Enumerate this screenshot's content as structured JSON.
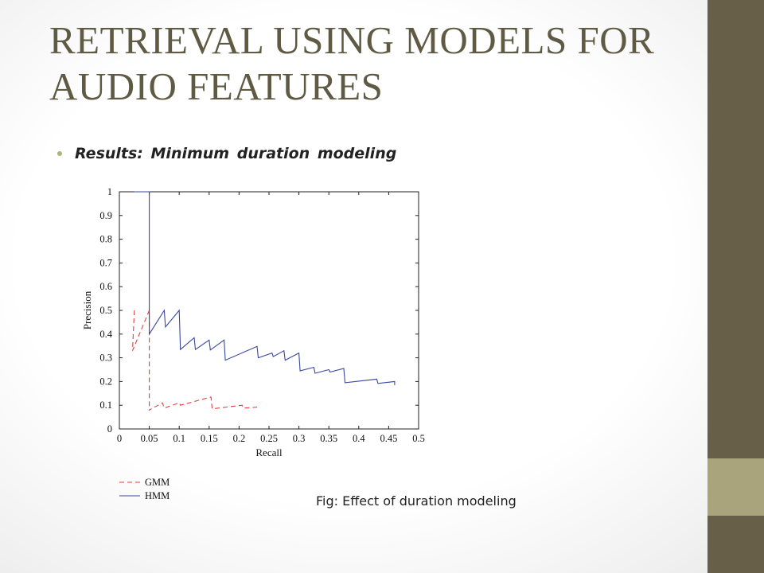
{
  "slide": {
    "title": "RETRIEVAL USING MODELS FOR AUDIO FEATURES",
    "bullet": "Results: Minimum duration modeling",
    "caption": "Fig: Effect of duration modeling"
  },
  "theme": {
    "sidebar_dark": "#675f47",
    "sidebar_light": "#aaa47c",
    "title_color": "#5f5a44",
    "bullet_color": "#b4b07c"
  },
  "chart_data": {
    "type": "line",
    "xlabel": "Recall",
    "ylabel": "Precision",
    "xlim": [
      0,
      0.5
    ],
    "ylim": [
      0,
      1
    ],
    "xticks": [
      0,
      0.05,
      0.1,
      0.15,
      0.2,
      0.25,
      0.3,
      0.35,
      0.4,
      0.45,
      0.5
    ],
    "yticks": [
      0,
      0.1,
      0.2,
      0.3,
      0.4,
      0.5,
      0.6,
      0.7,
      0.8,
      0.9,
      1
    ],
    "xtick_labels": [
      "0",
      "0.05",
      "0.1",
      "0.15",
      "0.2",
      "0.25",
      "0.3",
      "0.35",
      "0.4",
      "0.45",
      "0.5"
    ],
    "ytick_labels": [
      "0",
      "0.1",
      "0.2",
      "0.3",
      "0.4",
      "0.5",
      "0.6",
      "0.7",
      "0.8",
      "0.9",
      "1"
    ],
    "grid": false,
    "legend": "below-left",
    "series": [
      {
        "name": "GMM",
        "color": "#e04040",
        "dash": "dashed",
        "x": [
          0.025,
          0.022,
          0.05,
          0.05,
          0.05,
          0.072,
          0.075,
          0.1,
          0.102,
          0.153,
          0.155,
          0.205,
          0.207,
          0.23
        ],
        "y": [
          0.5,
          0.33,
          0.5,
          0.077,
          0.08,
          0.11,
          0.088,
          0.11,
          0.1,
          0.135,
          0.085,
          0.1,
          0.088,
          0.092
        ]
      },
      {
        "name": "HMM",
        "color": "#3a47a0",
        "dash": "solid",
        "x": [
          0.025,
          0.05,
          0.05,
          0.05,
          0.075,
          0.077,
          0.1,
          0.102,
          0.125,
          0.127,
          0.15,
          0.152,
          0.175,
          0.177,
          0.23,
          0.232,
          0.255,
          0.257,
          0.275,
          0.277,
          0.3,
          0.302,
          0.325,
          0.327,
          0.35,
          0.352,
          0.375,
          0.377,
          0.43,
          0.432,
          0.46,
          0.46
        ],
        "y": [
          1.0,
          1.0,
          0.5,
          0.4,
          0.5,
          0.43,
          0.5,
          0.335,
          0.385,
          0.335,
          0.375,
          0.333,
          0.375,
          0.29,
          0.348,
          0.3,
          0.32,
          0.305,
          0.33,
          0.29,
          0.32,
          0.245,
          0.26,
          0.235,
          0.25,
          0.24,
          0.255,
          0.195,
          0.21,
          0.192,
          0.2,
          0.185
        ]
      }
    ]
  }
}
